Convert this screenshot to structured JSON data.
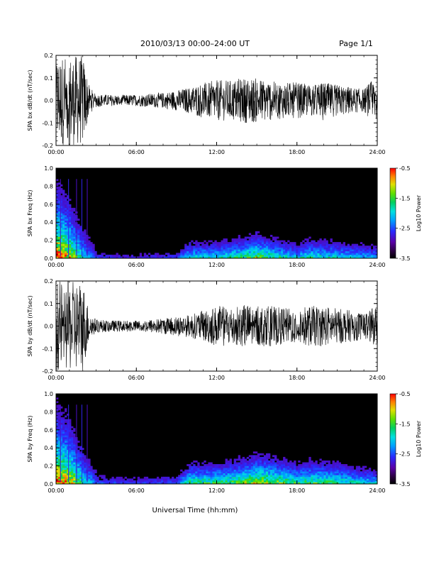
{
  "header": {
    "title": "2010/03/13  00:00–24:00 UT",
    "page": "Page 1/1"
  },
  "colors": {
    "trace": "#000000",
    "spectrogram_background": "#000000",
    "colormap": [
      "#000000",
      "#2a0040",
      "#5a00a8",
      "#2a2aff",
      "#00a0ff",
      "#00e0e0",
      "#00d060",
      "#60e000",
      "#e0e000",
      "#ff8000",
      "#ff0000"
    ]
  },
  "chart_data": [
    {
      "type": "line",
      "ylabel": "SPA bx dB/dt (nT/sec)",
      "xlabel": "",
      "xlim": [
        "00:00",
        "24:00"
      ],
      "x_ticks": [
        "00:00",
        "06:00",
        "12:00",
        "18:00",
        "24:00"
      ],
      "ylim": [
        -0.2,
        0.2
      ],
      "y_ticks": [
        "-0.2",
        "-0.1",
        "0.0",
        "0.1",
        "0.2"
      ],
      "series": [
        {
          "x_hours": [
            0,
            1,
            2,
            2.5,
            3,
            4,
            5,
            6,
            7,
            8,
            9,
            10,
            11,
            12,
            13,
            14,
            15,
            16,
            17,
            18,
            19,
            20,
            21,
            22,
            23,
            24
          ],
          "amplitude": [
            0.2,
            0.2,
            0.2,
            0.06,
            0.03,
            0.025,
            0.025,
            0.025,
            0.03,
            0.035,
            0.045,
            0.06,
            0.08,
            0.09,
            0.09,
            0.1,
            0.1,
            0.09,
            0.08,
            0.08,
            0.07,
            0.08,
            0.07,
            0.06,
            0.05,
            0.12
          ]
        }
      ]
    },
    {
      "type": "heatmap",
      "ylabel": "SPA bx Freq (Hz)",
      "xlabel": "",
      "xlim": [
        "00:00",
        "24:00"
      ],
      "x_ticks": [
        "00:00",
        "06:00",
        "12:00",
        "18:00",
        "24:00"
      ],
      "ylim": [
        0.0,
        1.0
      ],
      "y_ticks": [
        "0.0",
        "0.2",
        "0.4",
        "0.6",
        "0.8",
        "1.0"
      ],
      "colorbar": {
        "label": "Log10 Power",
        "range": [
          -3.5,
          -0.5
        ],
        "ticks": [
          "-0.5",
          "-1.5",
          "-2.5",
          "-3.5"
        ]
      },
      "power_profile": {
        "x_hours": [
          0,
          1,
          2,
          3,
          6,
          9,
          10,
          12,
          14,
          15,
          16,
          18,
          19,
          21,
          24
        ],
        "relative_activity": [
          1.0,
          0.8,
          0.5,
          0.25,
          0.2,
          0.25,
          0.5,
          0.5,
          0.6,
          0.7,
          0.6,
          0.45,
          0.55,
          0.5,
          0.4
        ]
      }
    },
    {
      "type": "line",
      "ylabel": "SPA by dB/dt (nT/sec)",
      "xlabel": "",
      "xlim": [
        "00:00",
        "24:00"
      ],
      "x_ticks": [
        "00:00",
        "06:00",
        "12:00",
        "18:00",
        "24:00"
      ],
      "ylim": [
        -0.2,
        0.2
      ],
      "y_ticks": [
        "-0.2",
        "-0.1",
        "0.0",
        "0.1",
        "0.2"
      ],
      "series": [
        {
          "x_hours": [
            0,
            1,
            2,
            2.5,
            3,
            4,
            5,
            6,
            7,
            8,
            9,
            10,
            11,
            12,
            13,
            14,
            15,
            16,
            17,
            18,
            19,
            20,
            21,
            22,
            23,
            24
          ],
          "amplitude": [
            0.2,
            0.2,
            0.2,
            0.06,
            0.03,
            0.025,
            0.025,
            0.025,
            0.03,
            0.035,
            0.045,
            0.05,
            0.07,
            0.09,
            0.09,
            0.1,
            0.09,
            0.09,
            0.08,
            0.08,
            0.09,
            0.09,
            0.08,
            0.07,
            0.06,
            0.09
          ]
        }
      ]
    },
    {
      "type": "heatmap",
      "ylabel": "SPA by Freq (Hz)",
      "xlabel": "Universal Time (hh:mm)",
      "xlim": [
        "00:00",
        "24:00"
      ],
      "x_ticks": [
        "00:00",
        "06:00",
        "12:00",
        "18:00",
        "24:00"
      ],
      "ylim": [
        0.0,
        1.0
      ],
      "y_ticks": [
        "0.0",
        "0.2",
        "0.4",
        "0.6",
        "0.8",
        "1.0"
      ],
      "colorbar": {
        "label": "Log10 Power",
        "range": [
          -3.5,
          -0.5
        ],
        "ticks": [
          "-0.5",
          "-1.5",
          "-2.5",
          "-3.5"
        ]
      },
      "power_profile": {
        "x_hours": [
          0,
          1,
          2,
          3,
          6,
          9,
          10,
          12,
          14,
          15,
          16,
          18,
          19,
          21,
          24
        ],
        "relative_activity": [
          1.0,
          0.85,
          0.55,
          0.3,
          0.25,
          0.3,
          0.6,
          0.6,
          0.7,
          0.8,
          0.75,
          0.6,
          0.65,
          0.6,
          0.45
        ]
      }
    }
  ]
}
